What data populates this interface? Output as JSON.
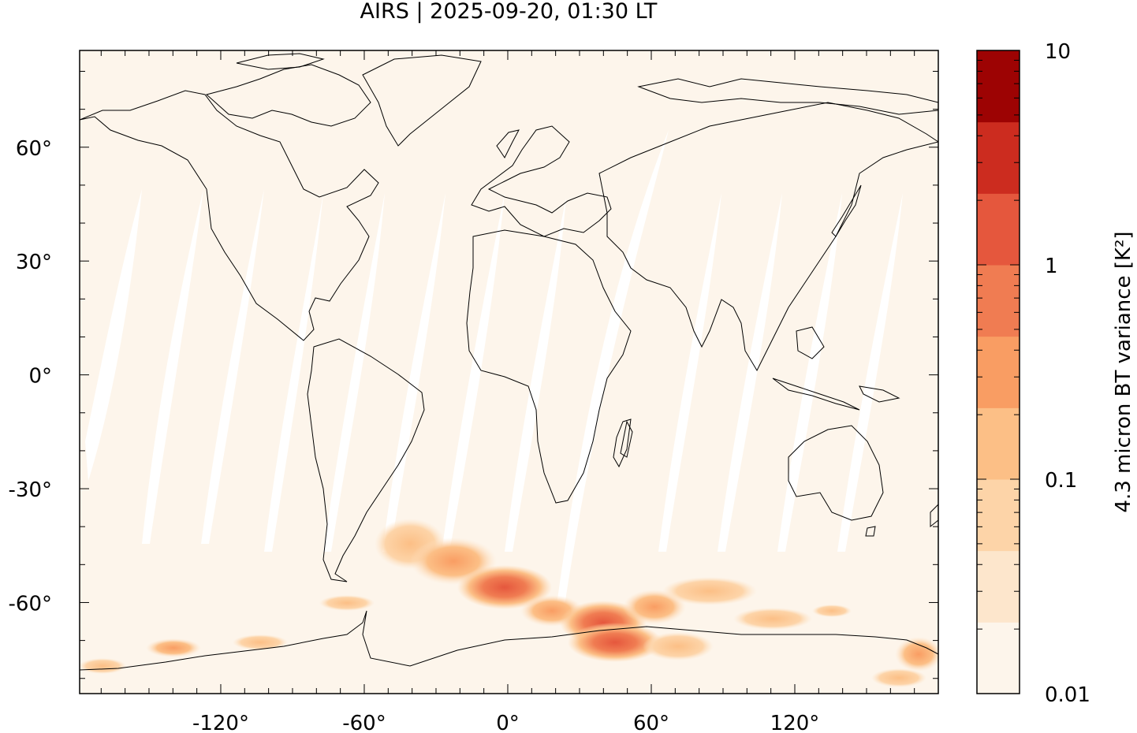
{
  "title": "AIRS | 2025-09-20, 01:30 LT",
  "map": {
    "projection": "plate-carree",
    "lon_range": [
      -180,
      180
    ],
    "lat_range": [
      -90,
      90
    ],
    "x_ticks": [
      {
        "value": -120,
        "label": "-120°"
      },
      {
        "value": -60,
        "label": "-60°"
      },
      {
        "value": 0,
        "label": "0°"
      },
      {
        "value": 60,
        "label": "60°"
      },
      {
        "value": 120,
        "label": "120°"
      }
    ],
    "y_ticks": [
      {
        "value": 60,
        "label": "60°"
      },
      {
        "value": 30,
        "label": "30°"
      },
      {
        "value": 0,
        "label": "0°"
      },
      {
        "value": -30,
        "label": "-30°"
      },
      {
        "value": -60,
        "label": "-60°"
      }
    ],
    "background_color": "#fdf5eb",
    "gap_color": "#ffffff",
    "coastline_color": "#000000"
  },
  "colorbar": {
    "label": "4.3 micron BT variance [K²]",
    "scale": "log",
    "range": [
      0.01,
      10
    ],
    "tick_labels": [
      {
        "value": 10,
        "label": "10"
      },
      {
        "value": 1,
        "label": "1"
      },
      {
        "value": 0.1,
        "label": "0.1"
      },
      {
        "value": 0.01,
        "label": "0.01"
      }
    ],
    "colors": [
      "#fdf5eb",
      "#fde6cc",
      "#fdd4a8",
      "#fcbf86",
      "#f99d63",
      "#f07c52",
      "#e5573d",
      "#cc2c1f",
      "#9d0303"
    ]
  }
}
